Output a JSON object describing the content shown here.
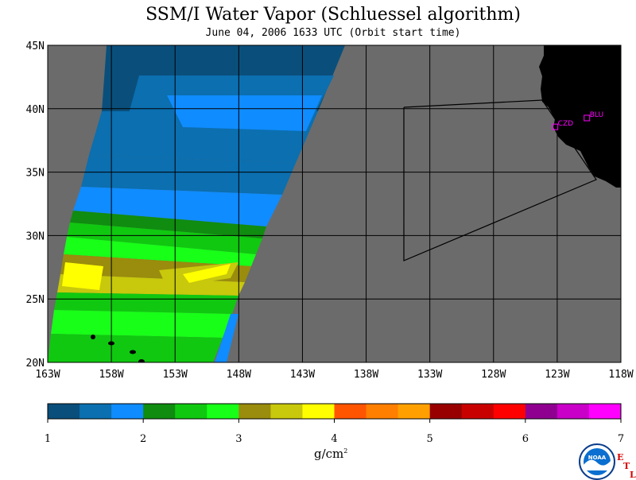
{
  "title": "SSM/I Water Vapor (Schluessel algorithm)",
  "subtitle": "June 04, 2006  1633 UTC  (Orbit start time)",
  "lat_labels": [
    "45N",
    "40N",
    "35N",
    "30N",
    "25N",
    "20N"
  ],
  "lon_labels": [
    "163W",
    "158W",
    "153W",
    "148W",
    "143W",
    "138W",
    "133W",
    "128W",
    "123W",
    "118W"
  ],
  "stations": [
    {
      "id": "CZD",
      "lat": 38.6,
      "lon": -123.2
    },
    {
      "id": "BLU",
      "lat": 39.3,
      "lon": -120.7
    }
  ],
  "colorbar": {
    "tick_labels": [
      "1",
      "2",
      "3",
      "4",
      "5",
      "6",
      "7"
    ],
    "unit": "g/cm",
    "unit_exponent": "2",
    "min": 1,
    "max": 7,
    "colors": [
      "#0a4f7c",
      "#0b6fb0",
      "#0f8cff",
      "#108c10",
      "#10c810",
      "#18ff18",
      "#9a8c0c",
      "#c8c80c",
      "#ffff00",
      "#ff5500",
      "#ff7f00",
      "#ffa000",
      "#980000",
      "#c80000",
      "#ff0000",
      "#900090",
      "#c800c8",
      "#ff00ff"
    ]
  },
  "colors": {
    "background": "#6b6b6b",
    "land": "#000000",
    "station_marker": "#ff00ff",
    "grid": "#000000"
  },
  "logos": {
    "noaa_text": "NOAA",
    "etl_letters": [
      "E",
      "T",
      "L"
    ]
  }
}
